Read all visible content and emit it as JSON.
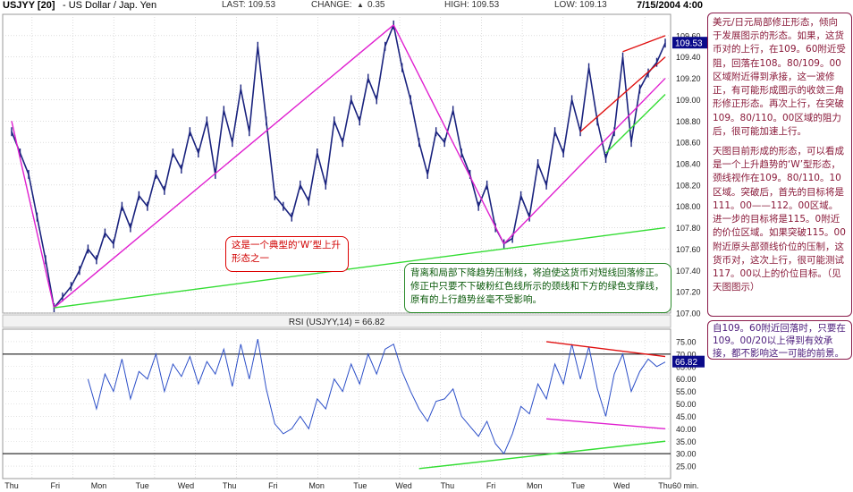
{
  "header": {
    "symbol": "USJYY [20]",
    "name": "- US Dollar / Jap. Yen",
    "last": "LAST: 109.53",
    "change_label": "CHANGE:",
    "change_value": "0.35",
    "high": "HIGH: 109.53",
    "low": "LOW: 109.13",
    "date": "7/15/2004 4:00"
  },
  "rsi_title": "RSI (USJYY,14) = 66.82",
  "interval": "60 min.",
  "annotations": {
    "w_shape": "这是一个典型的‘W’型上升形态之一",
    "green_note": "背离和局部下降趋势压制线，将迫使这货币对短线回落修正。修正中只要不下破粉红色线所示的颈线和下方的绿色支撑线，原有的上行趋势丝毫不受影响。",
    "right_p1": "美元/日元局部修正形态，倾向于发展图示的形态。如果，这货币对的上行，在109。60附近受阻，回落在108。80/109。00区域附近得到承接，这一波修正，有可能形成图示的收敛三角形修正形态。再次上行，在突破109。80/110。00区域的阻力后，很可能加速上行。",
    "right_p2": "天图目前形成的形态，可以看成是一个上升趋势的‘W’型形态，颈线视作在109。80/110。10区域。突破后，首先的目标将是111。00——112。00区域。进一步的目标将是115。0附近的价位区域。如果突破115。00附近原头部颈线价位的压制，这货币对，这次上行，很可能测试117。00以上的价位目标。（见天图图示）",
    "rsi_note": "自109。60附近回落时，只要在109。00/20以上得到有效承接，都不影响这一可能的前景。"
  },
  "colors": {
    "price": "#1a237e",
    "rsi": "#2c4fc8",
    "pink": "#e020d0",
    "green": "#33dd33",
    "red": "#e01010",
    "label_bg": "#0a0a8a"
  },
  "chart_data": [
    {
      "type": "line",
      "title": "USJYY [20] - US Dollar / Jap. Yen",
      "x_ticks": [
        "Thu",
        "Fri",
        "Mon",
        "Tue",
        "Wed",
        "Thu",
        "Fri",
        "Mon",
        "Tue",
        "Wed",
        "Thu",
        "Fri",
        "Mon",
        "Tue",
        "Wed",
        "Thu"
      ],
      "ylim": [
        107.0,
        109.8
      ],
      "y_ticks": [
        107.0,
        107.2,
        107.4,
        107.6,
        107.8,
        108.0,
        108.2,
        108.4,
        108.6,
        108.8,
        109.0,
        109.2,
        109.4,
        109.6
      ],
      "last_label": "109.53",
      "grid": true,
      "series": [
        {
          "values": [
            108.7,
            108.5,
            108.3,
            107.9,
            107.5,
            107.05,
            107.15,
            107.25,
            107.4,
            107.6,
            107.5,
            107.75,
            107.65,
            108.0,
            107.8,
            108.1,
            108.0,
            108.3,
            108.15,
            108.5,
            108.35,
            108.7,
            108.5,
            108.8,
            108.3,
            108.9,
            108.6,
            109.1,
            108.7,
            109.5,
            108.8,
            108.1,
            108.0,
            107.9,
            108.2,
            108.05,
            108.5,
            108.2,
            108.8,
            108.6,
            109.0,
            108.8,
            109.2,
            109.0,
            109.5,
            109.7,
            109.3,
            109.0,
            108.6,
            108.3,
            108.7,
            108.6,
            108.9,
            108.5,
            108.3,
            108.0,
            108.2,
            107.8,
            107.65,
            107.7,
            108.1,
            107.9,
            108.4,
            108.2,
            108.7,
            108.5,
            109.0,
            108.7,
            109.3,
            108.8,
            108.45,
            108.7,
            109.4,
            108.6,
            109.1,
            109.25,
            109.35,
            109.53
          ]
        }
      ],
      "trendlines": [
        {
          "name": "pink-left-spike",
          "color": "pink",
          "points": [
            [
              0,
              108.8
            ],
            [
              5,
              107.05
            ]
          ]
        },
        {
          "name": "pink-w-left-up",
          "color": "pink",
          "points": [
            [
              5,
              107.05
            ],
            [
              45,
              109.7
            ]
          ]
        },
        {
          "name": "pink-w-down",
          "color": "pink",
          "points": [
            [
              45,
              109.7
            ],
            [
              58,
              107.65
            ]
          ]
        },
        {
          "name": "pink-w-right-up",
          "color": "pink",
          "points": [
            [
              58,
              107.65
            ],
            [
              77,
              109.2
            ]
          ]
        },
        {
          "name": "green-support",
          "color": "green",
          "points": [
            [
              5,
              107.05
            ],
            [
              77,
              107.8
            ]
          ]
        },
        {
          "name": "green-triangle-low",
          "color": "green",
          "points": [
            [
              70,
              108.5
            ],
            [
              77,
              109.05
            ]
          ]
        },
        {
          "name": "red-resistance",
          "color": "red",
          "points": [
            [
              72,
              109.45
            ],
            [
              77,
              109.6
            ]
          ]
        },
        {
          "name": "red-triangle-upper",
          "color": "red",
          "points": [
            [
              67,
              108.7
            ],
            [
              77,
              109.4
            ]
          ]
        }
      ]
    },
    {
      "type": "line",
      "title": "RSI (USJYY,14) = 66.82",
      "ylim": [
        20,
        80
      ],
      "y_ticks": [
        25.0,
        30.0,
        35.0,
        40.0,
        45.0,
        50.0,
        55.0,
        60.0,
        65.0,
        70.0,
        75.0
      ],
      "reference_lines": [
        70,
        30
      ],
      "last_label": "66.82",
      "series": [
        {
          "values": [
            null,
            null,
            null,
            null,
            null,
            null,
            null,
            null,
            null,
            60,
            48,
            62,
            55,
            68,
            52,
            63,
            60,
            70,
            55,
            66,
            61,
            69,
            58,
            67,
            62,
            72,
            57,
            74,
            60,
            76,
            56,
            42,
            38,
            40,
            45,
            40,
            52,
            48,
            60,
            55,
            66,
            58,
            70,
            62,
            72,
            74,
            63,
            55,
            48,
            43,
            51,
            52,
            56,
            45,
            41,
            37,
            43,
            34,
            30,
            38,
            49,
            46,
            58,
            52,
            66,
            58,
            74,
            60,
            73,
            56,
            45,
            62,
            70,
            55,
            63,
            68,
            65,
            66.82
          ]
        }
      ],
      "trendlines": [
        {
          "name": "red-rsi-top",
          "color": "red",
          "points": [
            [
              63,
              75
            ],
            [
              77,
              69
            ]
          ]
        },
        {
          "name": "pink-rsi-floor",
          "color": "pink",
          "points": [
            [
              63,
              44
            ],
            [
              77,
              40
            ]
          ]
        },
        {
          "name": "green-rsi-support",
          "color": "green",
          "points": [
            [
              48,
              24
            ],
            [
              77,
              35
            ]
          ]
        }
      ]
    }
  ]
}
